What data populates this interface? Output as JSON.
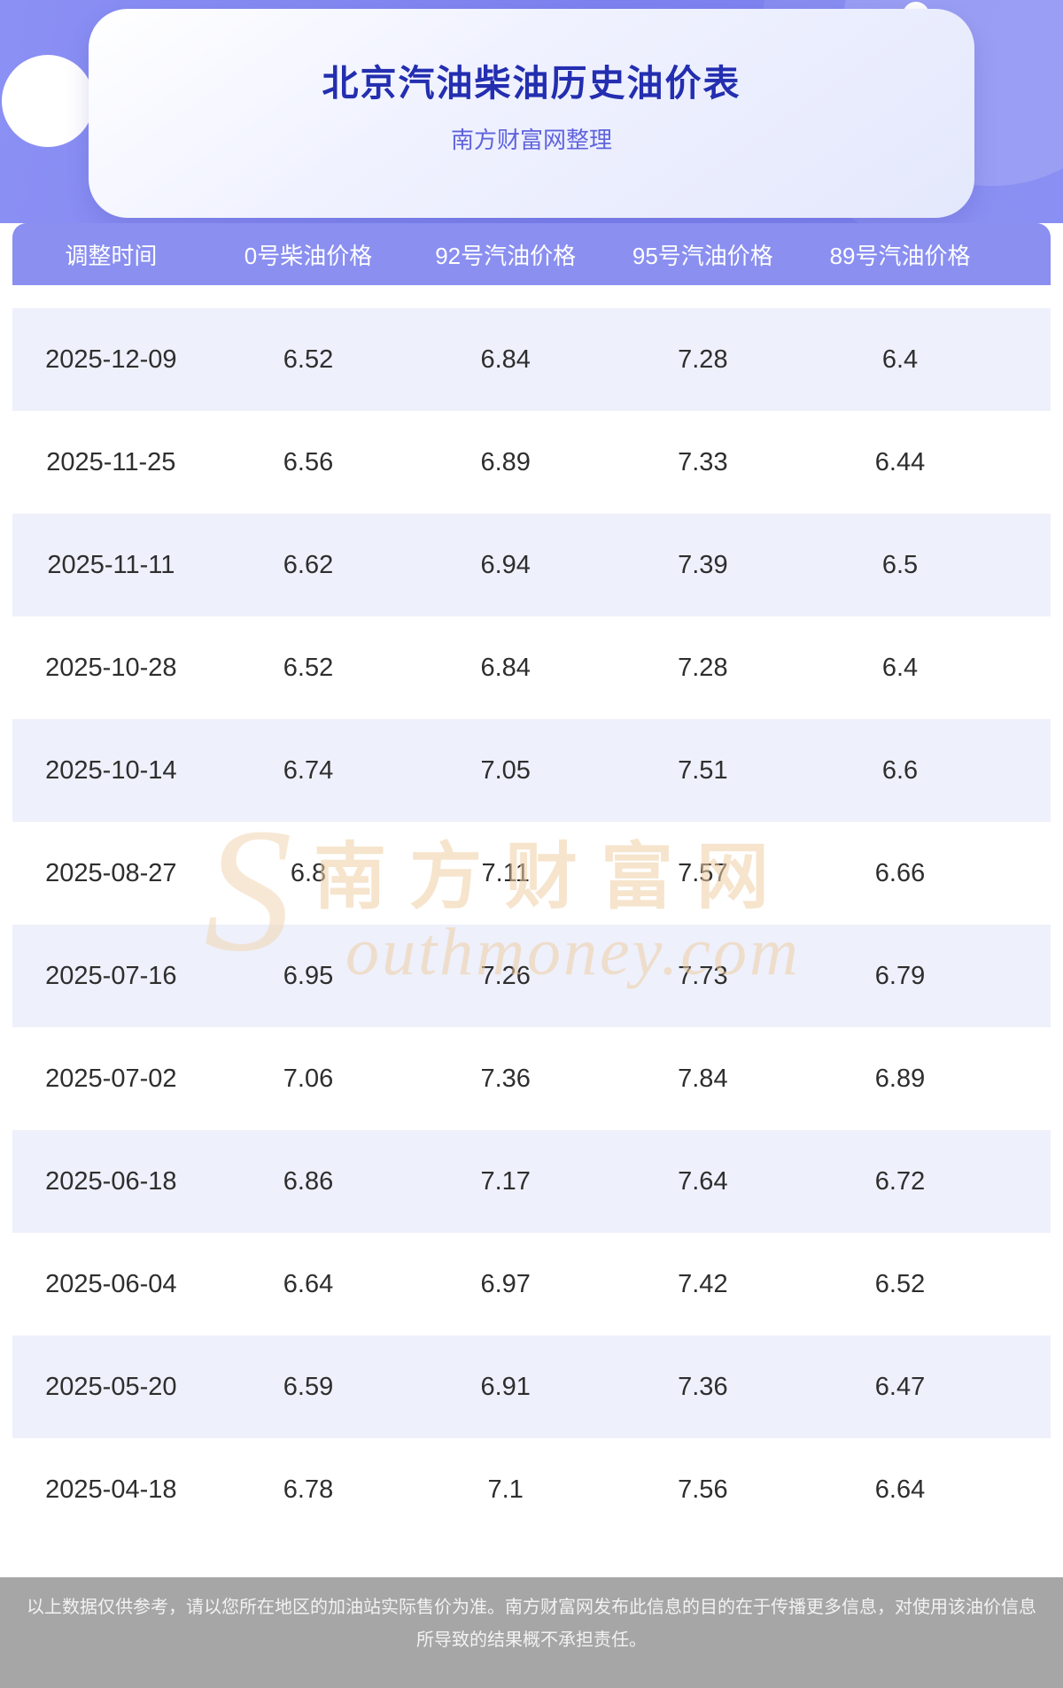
{
  "header": {
    "title": "北京汽油柴油历史油价表",
    "subtitle": "南方财富网整理"
  },
  "table": {
    "headers": [
      "调整时间",
      "0号柴油价格",
      "92号汽油价格",
      "95号汽油价格",
      "89号汽油价格"
    ],
    "rows": [
      [
        "2025-12-09",
        "6.52",
        "6.84",
        "7.28",
        "6.4"
      ],
      [
        "2025-11-25",
        "6.56",
        "6.89",
        "7.33",
        "6.44"
      ],
      [
        "2025-11-11",
        "6.62",
        "6.94",
        "7.39",
        "6.5"
      ],
      [
        "2025-10-28",
        "6.52",
        "6.84",
        "7.28",
        "6.4"
      ],
      [
        "2025-10-14",
        "6.74",
        "7.05",
        "7.51",
        "6.6"
      ],
      [
        "2025-08-27",
        "6.8",
        "7.11",
        "7.57",
        "6.66"
      ],
      [
        "2025-07-16",
        "6.95",
        "7.26",
        "7.73",
        "6.79"
      ],
      [
        "2025-07-02",
        "7.06",
        "7.36",
        "7.84",
        "6.89"
      ],
      [
        "2025-06-18",
        "6.86",
        "7.17",
        "7.64",
        "6.72"
      ],
      [
        "2025-06-04",
        "6.64",
        "6.97",
        "7.42",
        "6.52"
      ],
      [
        "2025-05-20",
        "6.59",
        "6.91",
        "7.36",
        "6.47"
      ],
      [
        "2025-04-18",
        "6.78",
        "7.1",
        "7.56",
        "6.64"
      ]
    ]
  },
  "watermark": {
    "en_initial": "S",
    "cn": "南方财富网",
    "en_rest": "outhmoney.com"
  },
  "footer": {
    "disclaimer": "以上数据仅供参考，请以您所在地区的加油站实际售价为准。南方财富网发布此信息的目的在于传播更多信息，对使用该油价信息所导致的结果概不承担责任。"
  },
  "colors": {
    "hero_background": "#7f85f1",
    "title_text": "#232eb0",
    "subtitle_text": "#5f63dd",
    "table_header_background": "#8a8ff0",
    "row_alt_background": "#eef0fb",
    "watermark_tint": "#efcfa5",
    "footer_background": "#a6a6a6"
  }
}
